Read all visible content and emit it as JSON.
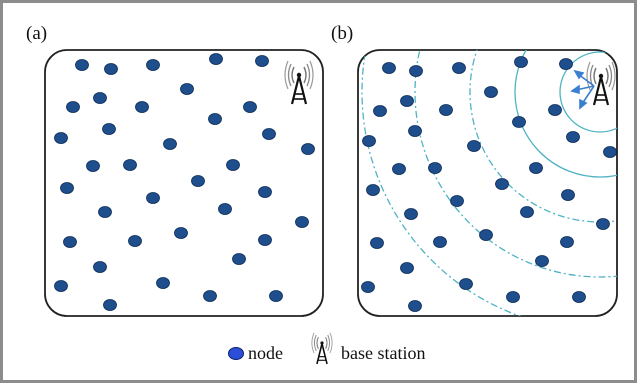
{
  "panels": [
    {
      "label": "(a)"
    },
    {
      "label": "(b)"
    }
  ],
  "legend": {
    "node_label": "node",
    "station_label": "base station"
  },
  "colors": {
    "node_fill": "#1f4e8c",
    "node_edge": "#0b2a55",
    "legend_node_fill": "#2b4fd8",
    "wave_color": "#4fb3c4",
    "field_border": "#222222",
    "frame": "#8c8c8c",
    "tower": "#111111",
    "signal_arrow": "#3a7fd0"
  },
  "icons": [
    "node-icon",
    "base-station-icon",
    "signal-arrow-icon",
    "wave-ring"
  ]
}
